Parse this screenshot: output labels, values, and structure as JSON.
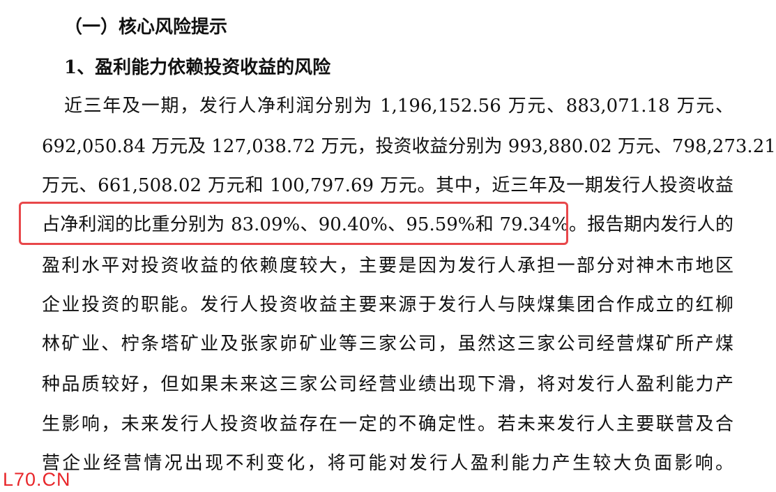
{
  "section_heading": "（一）核心风险提示",
  "sub_heading": "1、盈利能力依赖投资收益的风险",
  "paragraph_lines": [
    "近三年及一期，发行人净利润分别为 1,196,152.56 万元、883,071.18 万元、",
    "692,050.84 万元及 127,038.72 万元，投资收益分别为 993,880.02 万元、798,273.21",
    "万元、661,508.02 万元和 100,797.69 万元。其中，近三年及一期发行人投资收益",
    "占净利润的比重分别为 83.09%、90.40%、95.59%和 79.34%。报告期内发行人的",
    "盈利水平对投资收益的依赖度较大，主要是因为发行人承担一部分对神木市地区",
    "企业投资的职能。发行人投资收益主要来源于发行人与陕煤集团合作成立的红柳",
    "林矿业、柠条塔矿业及张家峁矿业等三家公司，虽然这三家公司经营煤矿所产煤",
    "种品质较好，但如果未来这三家公司经营业绩出现下滑，将对发行人盈利能力产",
    "生影响，未来发行人投资收益存在一定的不确定性。若未来发行人主要联营及合",
    "营企业经营情况出现不利变化，将可能对发行人盈利能力产生较大负面影响。"
  ],
  "highlight_color": "#e8474a",
  "watermark": "L70.CN"
}
